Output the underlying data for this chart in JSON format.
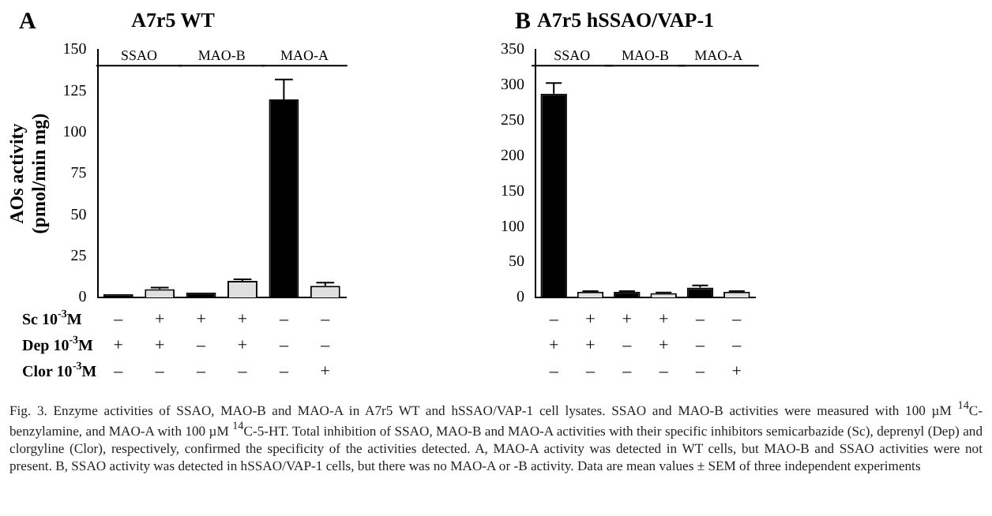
{
  "chart_data": [
    {
      "type": "bar",
      "title": "A7r5 WT",
      "ylabel": "AOs activity\n(pmol/min mg)",
      "categories": [
        "–\n+\n–",
        "+\n+\n–",
        "+\n–\n–",
        "+\n+\n–",
        "–\n–\n–",
        "–\n–\n+"
      ],
      "values": [
        2,
        5,
        3,
        10,
        120,
        7
      ],
      "errors": [
        null,
        1,
        null,
        1,
        12,
        2
      ],
      "colors": [
        "#000000",
        "#e0e0e0",
        "#000000",
        "#e0e0e0",
        "#000000",
        "#e0e0e0"
      ],
      "ylim": [
        0,
        150
      ],
      "yticks": [
        0,
        25,
        50,
        75,
        100,
        125,
        150
      ],
      "grid": false,
      "legend": false,
      "annotations": [
        "A",
        "SSAO",
        "MAO-B",
        "MAO-A",
        "Sc 10$^{-3}$M",
        "Dep 10$^{-3}$M",
        "Clor 10$^{-3}$M",
        "Fig. 3. Enzyme activities of SSAO, MAO-B and MAO-A in A7r5 WT and hSSAO/VAP-1 cell lysates. SSAO and MAO-B activities were measured with 100 µM $^{14}$C-benzylamine, and MAO-A with 100 µM $^{14}$C-5-HT. Total inhibition of SSAO, MAO-B and MAO-A activities with their specific inhibitors semicarbazide (Sc), deprenyl (Dep) and clorgyline (Clor), respectively, confirmed the specificity of the activities detected. A, MAO-A activity was detected in WT cells, but MAO-B and SSAO activities were not present. B, SSAO activity was detected in hSSAO/VAP-1 cells, but there was no MAO-A or -B activity. Data are mean values ± SEM of three independent experiments"
      ]
    },
    {
      "type": "bar",
      "title": "A7r5 hSSAO/VAP-1",
      "categories": [
        "–\n+\n–",
        "+\n+\n–",
        "+\n–\n–",
        "+\n+\n–",
        "–\n–\n–",
        "–\n–\n+"
      ],
      "values": [
        288,
        8,
        8,
        6,
        14,
        8
      ],
      "errors": [
        15,
        1,
        1,
        1,
        3,
        1
      ],
      "colors": [
        "#000000",
        "#e0e0e0",
        "#000000",
        "#e0e0e0",
        "#000000",
        "#e0e0e0"
      ],
      "ylim": [
        0,
        350
      ],
      "yticks": [
        0,
        50,
        100,
        150,
        200,
        250,
        300,
        350
      ],
      "grid": false,
      "legend": false,
      "annotations": [
        "B",
        "SSAO",
        "MAO-B",
        "MAO-A"
      ]
    }
  ]
}
